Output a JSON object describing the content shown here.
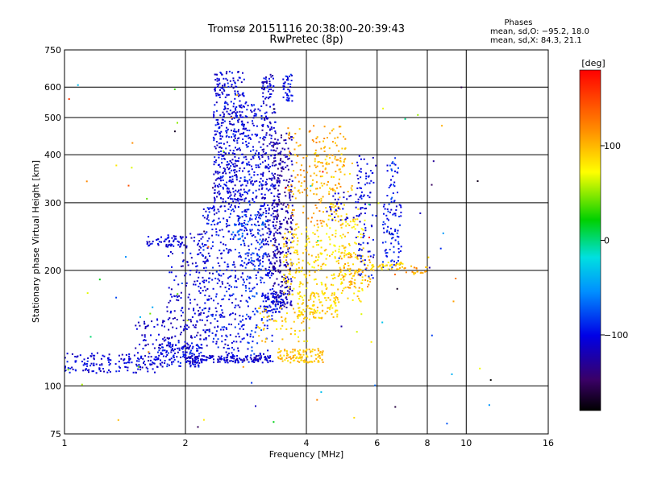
{
  "chart_data": {
    "type": "scatter",
    "title": "Tromsø 20151116 20:38:00–20:39:43",
    "subtitle": "RwPretec (8p)",
    "xlabel": "Frequency [MHz]",
    "ylabel": "Stationary phase Virtual Height [km]",
    "x_scale": "log",
    "y_scale": "log",
    "xlim": [
      1,
      16
    ],
    "ylim": [
      75,
      750
    ],
    "x_ticks": [
      "1",
      "2",
      "4",
      "6",
      "8",
      "10",
      "16"
    ],
    "y_ticks": [
      "75",
      "100",
      "200",
      "300",
      "400",
      "500",
      "600",
      "750"
    ],
    "grid": true,
    "stats": {
      "header": "Phases",
      "line_o": "mean, sd,O: −95.2, 18.0",
      "line_x": "mean, sd,X:  84.3, 21.1"
    },
    "colorbar": {
      "unit": "[deg]",
      "ticks": [
        "100",
        "0",
        "−100"
      ],
      "range": [
        -180,
        180
      ]
    },
    "clusters": [
      {
        "x": [
          1.0,
          1.7
        ],
        "y": [
          108,
          122
        ],
        "phase": -105,
        "count": 160
      },
      {
        "x": [
          1.7,
          2.2
        ],
        "y": [
          112,
          130
        ],
        "phase": -100,
        "count": 140
      },
      {
        "x": [
          2.0,
          3.3
        ],
        "y": [
          115,
          120
        ],
        "phase": -110,
        "count": 160
      },
      {
        "x": [
          1.5,
          2.3
        ],
        "y": [
          125,
          150
        ],
        "phase": -112,
        "count": 120
      },
      {
        "x": [
          1.6,
          2.0
        ],
        "y": [
          230,
          245
        ],
        "phase": -105,
        "count": 50
      },
      {
        "x": [
          1.8,
          2.3
        ],
        "y": [
          150,
          250
        ],
        "phase": -110,
        "count": 140
      },
      {
        "x": [
          2.2,
          2.8
        ],
        "y": [
          120,
          300
        ],
        "phase": -100,
        "count": 320
      },
      {
        "x": [
          2.35,
          2.8
        ],
        "y": [
          300,
          660
        ],
        "phase": -105,
        "count": 420
      },
      {
        "x": [
          2.8,
          3.1
        ],
        "y": [
          200,
          560
        ],
        "phase": -100,
        "count": 220
      },
      {
        "x": [
          3.1,
          3.35
        ],
        "y": [
          190,
          650
        ],
        "phase": -110,
        "count": 260
      },
      {
        "x": [
          3.3,
          3.7
        ],
        "y": [
          160,
          460
        ],
        "phase": -125,
        "count": 320
      },
      {
        "x": [
          3.5,
          3.7
        ],
        "y": [
          550,
          650
        ],
        "phase": -100,
        "count": 40
      },
      {
        "x": [
          2.8,
          3.3
        ],
        "y": [
          120,
          200
        ],
        "phase": -90,
        "count": 100
      },
      {
        "x": [
          3.1,
          3.6
        ],
        "y": [
          155,
          175
        ],
        "phase": -105,
        "count": 80
      },
      {
        "x": [
          2.6,
          3.2
        ],
        "y": [
          200,
          280
        ],
        "phase": -75,
        "count": 60
      },
      {
        "x": [
          3.4,
          4.4
        ],
        "y": [
          115,
          125
        ],
        "phase": 95,
        "count": 110
      },
      {
        "x": [
          3.0,
          4.1
        ],
        "y": [
          130,
          160
        ],
        "phase": 90,
        "count": 60
      },
      {
        "x": [
          3.8,
          4.8
        ],
        "y": [
          150,
          175
        ],
        "phase": 90,
        "count": 110
      },
      {
        "x": [
          3.5,
          4.5
        ],
        "y": [
          170,
          260
        ],
        "phase": 85,
        "count": 160
      },
      {
        "x": [
          3.6,
          5.0
        ],
        "y": [
          260,
          480
        ],
        "phase": 105,
        "count": 160
      },
      {
        "x": [
          4.5,
          5.6
        ],
        "y": [
          165,
          300
        ],
        "phase": 85,
        "count": 160
      },
      {
        "x": [
          4.2,
          5.3
        ],
        "y": [
          320,
          420
        ],
        "phase": 95,
        "count": 60
      },
      {
        "x": [
          4.8,
          5.8
        ],
        "y": [
          180,
          220
        ],
        "phase": 100,
        "count": 70
      },
      {
        "x": [
          5.3,
          5.9
        ],
        "y": [
          190,
          400
        ],
        "phase": -100,
        "count": 90
      },
      {
        "x": [
          4.5,
          5.5
        ],
        "y": [
          270,
          320
        ],
        "phase": -110,
        "count": 40
      },
      {
        "x": [
          6.2,
          6.9
        ],
        "y": [
          200,
          300
        ],
        "phase": -95,
        "count": 80
      },
      {
        "x": [
          6.3,
          6.8
        ],
        "y": [
          300,
          400
        ],
        "phase": -90,
        "count": 30
      },
      {
        "x": [
          5.8,
          7.0
        ],
        "y": [
          200,
          210
        ],
        "phase": 90,
        "count": 40
      },
      {
        "x": [
          7.0,
          8.0
        ],
        "y": [
          195,
          205
        ],
        "phase": 110,
        "count": 20
      },
      {
        "x": [
          1.0,
          12.0
        ],
        "y": [
          78,
          650
        ],
        "phase": "random",
        "count": 90
      }
    ]
  }
}
